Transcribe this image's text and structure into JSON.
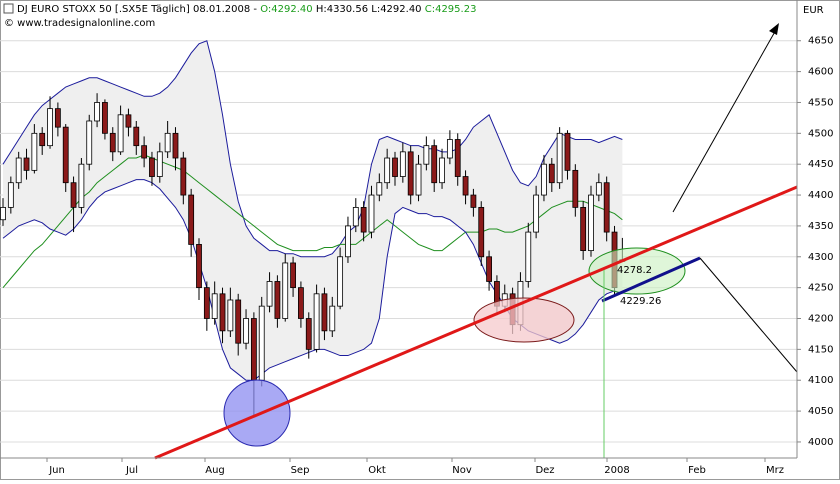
{
  "header": {
    "instrument": "DJ EURO STOXX 50 [.SX5E  Täglich] 08.01.2008 -",
    "open": "O:4292.40",
    "high": "H:4330.56",
    "low": "L:4292.40",
    "close": "C:4295.23",
    "copyright": "© www.tradesignalonline.com"
  },
  "chart_data": {
    "type": "candlestick",
    "currency": "EUR",
    "ylim": [
      3974,
      4716
    ],
    "yticks": [
      4000,
      4050,
      4100,
      4150,
      4200,
      4250,
      4300,
      4350,
      4400,
      4450,
      4500,
      4550,
      4600,
      4650
    ],
    "grid": true,
    "months": [
      "Jun",
      "Jul",
      "Aug",
      "Sep",
      "Okt",
      "Nov",
      "Dez",
      "2008",
      "Feb",
      "Mrz"
    ],
    "up_color": "#ffffff",
    "down_color": "#8b1a1a",
    "candles": [
      [
        4360,
        4395,
        4350,
        4380
      ],
      [
        4380,
        4430,
        4370,
        4420
      ],
      [
        4420,
        4470,
        4410,
        4460
      ],
      [
        4460,
        4475,
        4425,
        4440
      ],
      [
        4440,
        4515,
        4435,
        4500
      ],
      [
        4500,
        4510,
        4465,
        4480
      ],
      [
        4480,
        4560,
        4475,
        4540
      ],
      [
        4540,
        4550,
        4495,
        4510
      ],
      [
        4510,
        4515,
        4405,
        4420
      ],
      [
        4420,
        4430,
        4340,
        4380
      ],
      [
        4380,
        4460,
        4370,
        4450
      ],
      [
        4450,
        4530,
        4440,
        4520
      ],
      [
        4520,
        4565,
        4510,
        4550
      ],
      [
        4550,
        4555,
        4490,
        4500
      ],
      [
        4500,
        4510,
        4455,
        4470
      ],
      [
        4470,
        4545,
        4465,
        4530
      ],
      [
        4530,
        4540,
        4495,
        4510
      ],
      [
        4510,
        4520,
        4465,
        4480
      ],
      [
        4480,
        4495,
        4445,
        4460
      ],
      [
        4460,
        4470,
        4415,
        4430
      ],
      [
        4430,
        4485,
        4420,
        4470
      ],
      [
        4470,
        4520,
        4460,
        4500
      ],
      [
        4500,
        4510,
        4440,
        4460
      ],
      [
        4460,
        4470,
        4385,
        4400
      ],
      [
        4400,
        4410,
        4300,
        4320
      ],
      [
        4320,
        4330,
        4230,
        4250
      ],
      [
        4250,
        4260,
        4180,
        4200
      ],
      [
        4200,
        4260,
        4190,
        4240
      ],
      [
        4240,
        4250,
        4160,
        4180
      ],
      [
        4180,
        4250,
        4170,
        4230
      ],
      [
        4230,
        4240,
        4140,
        4160
      ],
      [
        4160,
        4215,
        4150,
        4200
      ],
      [
        4200,
        4210,
        4040,
        4100
      ],
      [
        4100,
        4235,
        4090,
        4220
      ],
      [
        4220,
        4275,
        4210,
        4260
      ],
      [
        4260,
        4270,
        4185,
        4200
      ],
      [
        4200,
        4305,
        4195,
        4290
      ],
      [
        4290,
        4300,
        4235,
        4250
      ],
      [
        4250,
        4260,
        4185,
        4200
      ],
      [
        4200,
        4210,
        4135,
        4150
      ],
      [
        4150,
        4255,
        4145,
        4240
      ],
      [
        4240,
        4250,
        4165,
        4180
      ],
      [
        4180,
        4235,
        4170,
        4220
      ],
      [
        4220,
        4315,
        4215,
        4300
      ],
      [
        4300,
        4365,
        4290,
        4350
      ],
      [
        4350,
        4395,
        4340,
        4380
      ],
      [
        4380,
        4390,
        4325,
        4340
      ],
      [
        4340,
        4415,
        4330,
        4400
      ],
      [
        4400,
        4435,
        4390,
        4420
      ],
      [
        4420,
        4475,
        4410,
        4460
      ],
      [
        4460,
        4470,
        4415,
        4430
      ],
      [
        4430,
        4485,
        4420,
        4470
      ],
      [
        4470,
        4480,
        4385,
        4400
      ],
      [
        4400,
        4465,
        4390,
        4450
      ],
      [
        4450,
        4495,
        4440,
        4480
      ],
      [
        4480,
        4490,
        4405,
        4420
      ],
      [
        4420,
        4475,
        4410,
        4460
      ],
      [
        4460,
        4505,
        4450,
        4490
      ],
      [
        4490,
        4500,
        4415,
        4430
      ],
      [
        4430,
        4440,
        4385,
        4400
      ],
      [
        4400,
        4410,
        4365,
        4380
      ],
      [
        4380,
        4390,
        4285,
        4300
      ],
      [
        4300,
        4310,
        4245,
        4260
      ],
      [
        4260,
        4270,
        4205,
        4220
      ],
      [
        4220,
        4255,
        4210,
        4240
      ],
      [
        4240,
        4250,
        4175,
        4190
      ],
      [
        4190,
        4275,
        4180,
        4260
      ],
      [
        4260,
        4355,
        4250,
        4340
      ],
      [
        4340,
        4415,
        4330,
        4400
      ],
      [
        4400,
        4465,
        4390,
        4450
      ],
      [
        4450,
        4460,
        4405,
        4420
      ],
      [
        4420,
        4510,
        4410,
        4500
      ],
      [
        4500,
        4505,
        4425,
        4440
      ],
      [
        4440,
        4450,
        4365,
        4380
      ],
      [
        4380,
        4390,
        4295,
        4310
      ],
      [
        4310,
        4415,
        4300,
        4400
      ],
      [
        4400,
        4435,
        4390,
        4420
      ],
      [
        4420,
        4430,
        4325,
        4340
      ],
      [
        4340,
        4350,
        4235,
        4250
      ],
      [
        4292.4,
        4330.56,
        4292.4,
        4295.23
      ]
    ],
    "bands": {
      "upper": {
        "color": "#1c1c9c",
        "values": [
          4450,
          4470,
          4490,
          4510,
          4530,
          4545,
          4555,
          4565,
          4575,
          4580,
          4585,
          4590,
          4590,
          4585,
          4580,
          4575,
          4570,
          4565,
          4560,
          4560,
          4565,
          4575,
          4590,
          4610,
          4630,
          4645,
          4650,
          4600,
          4530,
          4450,
          4390,
          4350,
          4330,
          4320,
          4310,
          4310,
          4305,
          4305,
          4300,
          4300,
          4300,
          4300,
          4305,
          4320,
          4340,
          4350,
          4380,
          4450,
          4490,
          4495,
          4490,
          4485,
          4480,
          4480,
          4475,
          4475,
          4470,
          4470,
          4475,
          4490,
          4510,
          4520,
          4530,
          4500,
          4470,
          4440,
          4420,
          4415,
          4430,
          4460,
          4480,
          4500,
          4495,
          4490,
          4490,
          4490,
          4485,
          4490,
          4495,
          4490
        ]
      },
      "middle": {
        "color": "#1f8f1f",
        "values": [
          4250,
          4265,
          4280,
          4295,
          4310,
          4320,
          4335,
          4350,
          4365,
          4380,
          4395,
          4405,
          4420,
          4430,
          4440,
          4450,
          4460,
          4460,
          4465,
          4460,
          4455,
          4450,
          4445,
          4440,
          4430,
          4420,
          4410,
          4400,
          4390,
          4380,
          4370,
          4360,
          4350,
          4340,
          4330,
          4320,
          4315,
          4310,
          4310,
          4310,
          4310,
          4315,
          4315,
          4320,
          4320,
          4320,
          4330,
          4340,
          4350,
          4360,
          4350,
          4340,
          4330,
          4320,
          4315,
          4310,
          4310,
          4320,
          4330,
          4340,
          4340,
          4340,
          4345,
          4345,
          4340,
          4340,
          4345,
          4350,
          4360,
          4370,
          4380,
          4385,
          4390,
          4390,
          4390,
          4385,
          4380,
          4375,
          4370,
          4360
        ]
      },
      "lower": {
        "color": "#1c1c9c",
        "values": [
          4330,
          4340,
          4350,
          4355,
          4360,
          4355,
          4345,
          4340,
          4335,
          4345,
          4360,
          4380,
          4395,
          4405,
          4410,
          4415,
          4420,
          4425,
          4425,
          4420,
          4410,
          4395,
          4380,
          4360,
          4330,
          4290,
          4250,
          4200,
          4150,
          4120,
          4110,
          4100,
          4100,
          4110,
          4120,
          4125,
          4130,
          4135,
          4140,
          4145,
          4150,
          4150,
          4145,
          4140,
          4140,
          4145,
          4150,
          4160,
          4200,
          4300,
          4370,
          4380,
          4375,
          4370,
          4370,
          4365,
          4365,
          4360,
          4350,
          4340,
          4320,
          4290,
          4260,
          4240,
          4220,
          4200,
          4190,
          4180,
          4175,
          4170,
          4165,
          4160,
          4165,
          4175,
          4190,
          4210,
          4230,
          4240,
          4245,
          4240
        ]
      },
      "fill": "#efefef"
    },
    "annotations": [
      {
        "text": "4278.2",
        "color": "#c0392b"
      },
      {
        "text": "4229.26",
        "color": "#1a1a8c"
      }
    ]
  }
}
